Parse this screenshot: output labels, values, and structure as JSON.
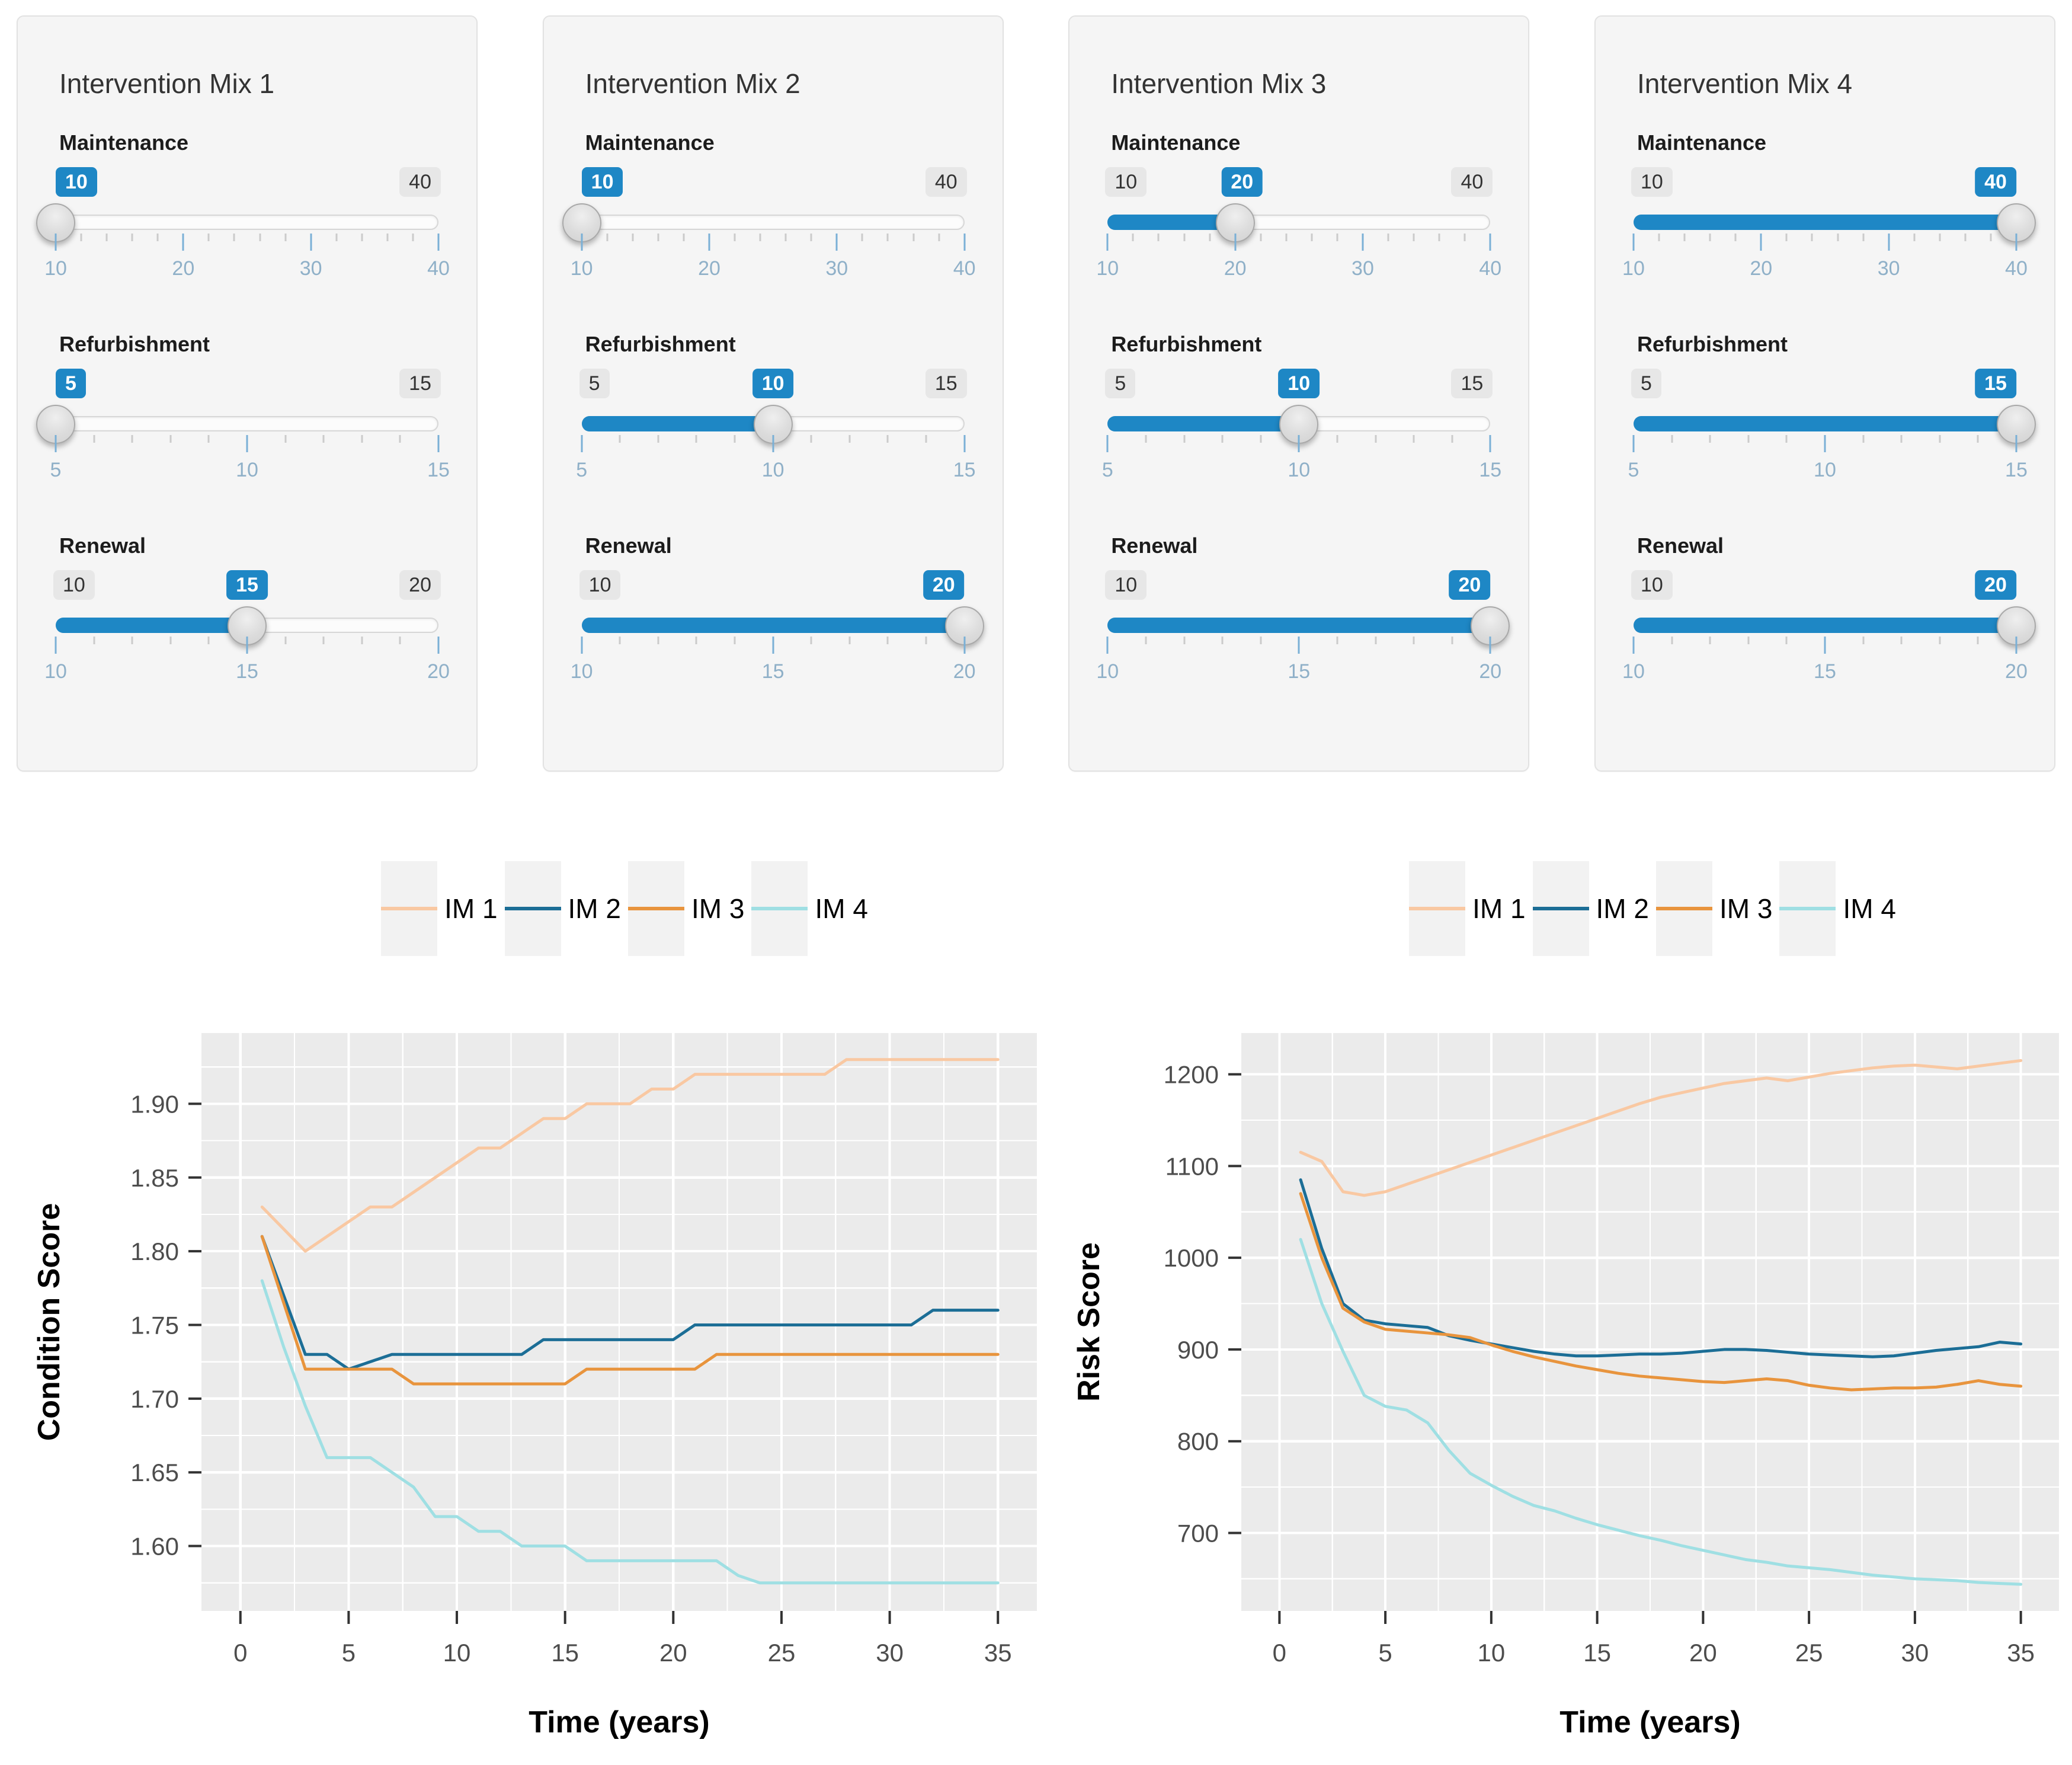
{
  "colors": {
    "slider_blue": "#1E87C5",
    "panel_bg": "#F5F5F5",
    "plot_bg": "#EBEBEB",
    "grid": "#FFFFFF",
    "axis_text": "#4D4D4D",
    "slider_tick_label": "#8FB0C8"
  },
  "panels": [
    {
      "title": "Intervention Mix 1",
      "sliders": [
        {
          "label": "Maintenance",
          "min": 10,
          "max": 40,
          "value": 10,
          "tick_step": 2,
          "ticks": [
            10,
            20,
            30,
            40
          ]
        },
        {
          "label": "Refurbishment",
          "min": 5,
          "max": 15,
          "value": 5,
          "tick_step": 1,
          "ticks": [
            5,
            10,
            15
          ]
        },
        {
          "label": "Renewal",
          "min": 10,
          "max": 20,
          "value": 15,
          "tick_step": 1,
          "ticks": [
            10,
            15,
            20
          ]
        }
      ]
    },
    {
      "title": "Intervention Mix 2",
      "sliders": [
        {
          "label": "Maintenance",
          "min": 10,
          "max": 40,
          "value": 10,
          "tick_step": 2,
          "ticks": [
            10,
            20,
            30,
            40
          ]
        },
        {
          "label": "Refurbishment",
          "min": 5,
          "max": 15,
          "value": 10,
          "tick_step": 1,
          "ticks": [
            5,
            10,
            15
          ]
        },
        {
          "label": "Renewal",
          "min": 10,
          "max": 20,
          "value": 20,
          "tick_step": 1,
          "ticks": [
            10,
            15,
            20
          ]
        }
      ]
    },
    {
      "title": "Intervention Mix 3",
      "sliders": [
        {
          "label": "Maintenance",
          "min": 10,
          "max": 40,
          "value": 20,
          "tick_step": 2,
          "ticks": [
            10,
            20,
            30,
            40
          ]
        },
        {
          "label": "Refurbishment",
          "min": 5,
          "max": 15,
          "value": 10,
          "tick_step": 1,
          "ticks": [
            5,
            10,
            15
          ]
        },
        {
          "label": "Renewal",
          "min": 10,
          "max": 20,
          "value": 20,
          "tick_step": 1,
          "ticks": [
            10,
            15,
            20
          ]
        }
      ]
    },
    {
      "title": "Intervention Mix 4",
      "sliders": [
        {
          "label": "Maintenance",
          "min": 10,
          "max": 40,
          "value": 40,
          "tick_step": 2,
          "ticks": [
            10,
            20,
            30,
            40
          ]
        },
        {
          "label": "Refurbishment",
          "min": 5,
          "max": 15,
          "value": 15,
          "tick_step": 1,
          "ticks": [
            5,
            10,
            15
          ]
        },
        {
          "label": "Renewal",
          "min": 10,
          "max": 20,
          "value": 20,
          "tick_step": 1,
          "ticks": [
            10,
            15,
            20
          ]
        }
      ]
    }
  ],
  "chart_data": [
    {
      "type": "line",
      "title": "",
      "xlabel": "Time (years)",
      "ylabel": "Condition Score",
      "legend_position": "top",
      "grid": "major+minor",
      "xlim": [
        -1.8,
        36.8
      ],
      "ylim": [
        1.556,
        1.948
      ],
      "xticks": [
        0,
        5,
        10,
        15,
        20,
        25,
        30,
        35
      ],
      "yticks": [
        1.6,
        1.65,
        1.7,
        1.75,
        1.8,
        1.85,
        1.9
      ],
      "ytick_labels": [
        "1.60",
        "1.65",
        "1.70",
        "1.75",
        "1.80",
        "1.85",
        "1.90"
      ],
      "x": [
        1,
        2,
        3,
        4,
        5,
        6,
        7,
        8,
        9,
        10,
        11,
        12,
        13,
        14,
        15,
        16,
        17,
        18,
        19,
        20,
        21,
        22,
        23,
        24,
        25,
        26,
        27,
        28,
        29,
        30,
        31,
        32,
        33,
        34,
        35
      ],
      "series": [
        {
          "name": "IM 1",
          "color": "#F9C8A2",
          "values": [
            1.83,
            1.815,
            1.8,
            1.81,
            1.82,
            1.83,
            1.83,
            1.84,
            1.85,
            1.86,
            1.87,
            1.87,
            1.88,
            1.89,
            1.89,
            1.9,
            1.9,
            1.9,
            1.91,
            1.91,
            1.92,
            1.92,
            1.92,
            1.92,
            1.92,
            1.92,
            1.92,
            1.93,
            1.93,
            1.93,
            1.93,
            1.93,
            1.93,
            1.93,
            1.93
          ]
        },
        {
          "name": "IM 2",
          "color": "#1C6E96",
          "values": [
            1.81,
            1.77,
            1.73,
            1.73,
            1.72,
            1.725,
            1.73,
            1.73,
            1.73,
            1.73,
            1.73,
            1.73,
            1.73,
            1.74,
            1.74,
            1.74,
            1.74,
            1.74,
            1.74,
            1.74,
            1.75,
            1.75,
            1.75,
            1.75,
            1.75,
            1.75,
            1.75,
            1.75,
            1.75,
            1.75,
            1.75,
            1.76,
            1.76,
            1.76,
            1.76
          ]
        },
        {
          "name": "IM 3",
          "color": "#E8943D",
          "values": [
            1.81,
            1.765,
            1.72,
            1.72,
            1.72,
            1.72,
            1.72,
            1.71,
            1.71,
            1.71,
            1.71,
            1.71,
            1.71,
            1.71,
            1.71,
            1.72,
            1.72,
            1.72,
            1.72,
            1.72,
            1.72,
            1.73,
            1.73,
            1.73,
            1.73,
            1.73,
            1.73,
            1.73,
            1.73,
            1.73,
            1.73,
            1.73,
            1.73,
            1.73,
            1.73
          ]
        },
        {
          "name": "IM 4",
          "color": "#9FDFE3",
          "values": [
            1.78,
            1.735,
            1.695,
            1.66,
            1.66,
            1.66,
            1.65,
            1.64,
            1.62,
            1.62,
            1.61,
            1.61,
            1.6,
            1.6,
            1.6,
            1.59,
            1.59,
            1.59,
            1.59,
            1.59,
            1.59,
            1.59,
            1.58,
            1.575,
            1.575,
            1.575,
            1.575,
            1.575,
            1.575,
            1.575,
            1.575,
            1.575,
            1.575,
            1.575,
            1.575
          ]
        }
      ]
    },
    {
      "type": "line",
      "title": "",
      "xlabel": "Time (years)",
      "ylabel": "Risk Score",
      "legend_position": "top",
      "grid": "major+minor",
      "xlim": [
        -1.8,
        36.8
      ],
      "ylim": [
        615,
        1245
      ],
      "xticks": [
        0,
        5,
        10,
        15,
        20,
        25,
        30,
        35
      ],
      "yticks": [
        700,
        800,
        900,
        1000,
        1100,
        1200
      ],
      "ytick_labels": [
        "700",
        "800",
        "900",
        "1000",
        "1100",
        "1200"
      ],
      "x": [
        1,
        2,
        3,
        4,
        5,
        6,
        7,
        8,
        9,
        10,
        11,
        12,
        13,
        14,
        15,
        16,
        17,
        18,
        19,
        20,
        21,
        22,
        23,
        24,
        25,
        26,
        27,
        28,
        29,
        30,
        31,
        32,
        33,
        34,
        35
      ],
      "series": [
        {
          "name": "IM 1",
          "color": "#F9C8A2",
          "values": [
            1115,
            1105,
            1072,
            1068,
            1072,
            1080,
            1088,
            1096,
            1104,
            1112,
            1120,
            1128,
            1136,
            1144,
            1152,
            1160,
            1168,
            1175,
            1180,
            1185,
            1190,
            1193,
            1196,
            1193,
            1197,
            1201,
            1204,
            1207,
            1209,
            1210,
            1208,
            1206,
            1209,
            1212,
            1215
          ]
        },
        {
          "name": "IM 2",
          "color": "#1C6E96",
          "values": [
            1085,
            1010,
            950,
            932,
            928,
            926,
            924,
            915,
            910,
            906,
            902,
            898,
            895,
            893,
            893,
            894,
            895,
            895,
            896,
            898,
            900,
            900,
            899,
            897,
            895,
            894,
            893,
            892,
            893,
            896,
            899,
            901,
            903,
            908,
            906
          ]
        },
        {
          "name": "IM 3",
          "color": "#E8943D",
          "values": [
            1070,
            1000,
            945,
            930,
            922,
            920,
            918,
            916,
            913,
            905,
            898,
            892,
            887,
            882,
            878,
            874,
            871,
            869,
            867,
            865,
            864,
            866,
            868,
            866,
            861,
            858,
            856,
            857,
            858,
            858,
            859,
            862,
            866,
            862,
            860
          ]
        },
        {
          "name": "IM 4",
          "color": "#9FDFE3",
          "values": [
            1020,
            950,
            898,
            850,
            838,
            834,
            820,
            790,
            765,
            752,
            740,
            730,
            724,
            716,
            709,
            703,
            697,
            692,
            686,
            681,
            676,
            671,
            668,
            664,
            662,
            660,
            657,
            654,
            652,
            650,
            649,
            648,
            646,
            645,
            644
          ]
        }
      ]
    }
  ]
}
